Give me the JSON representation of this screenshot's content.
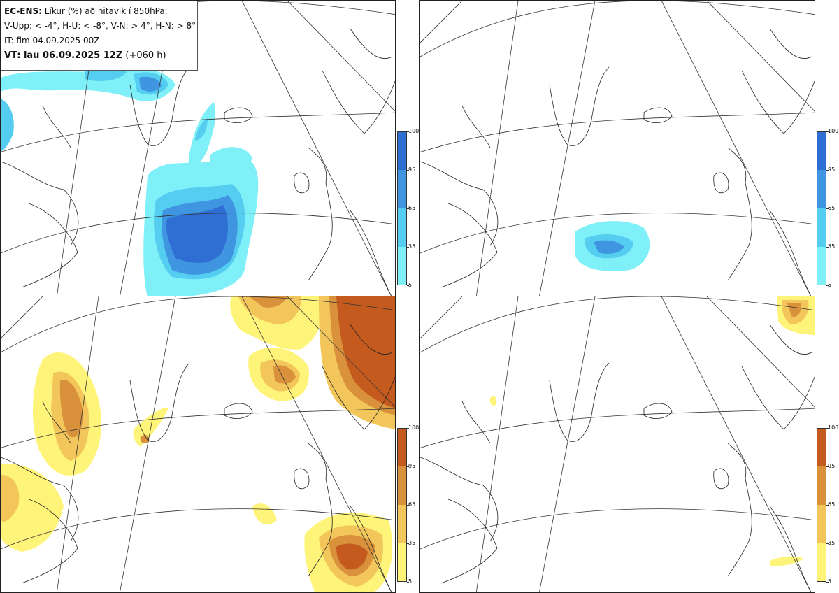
{
  "legend": {
    "product": "EC-ENS:",
    "title": "Líkur (%) að hitavik í 850hPa:",
    "thresholds": "V-Upp: < -4°, H-U: < -8°, V-N: > 4°, H-N: > 8°",
    "init_time": "IT: fim 04.09.2025 00Z",
    "valid_prefix": "VT: lau 06.09.2025 12Z",
    "valid_lead": "(+060 h)"
  },
  "colorbar_ticks": [
    "100",
    "95",
    "65",
    "35",
    "5"
  ],
  "colors": {
    "cold_scale": [
      "#7ff0f8",
      "#55cdf0",
      "#3f95e0",
      "#2f6fd4"
    ],
    "warm_scale": [
      "#fff47a",
      "#f2c65a",
      "#d9913c",
      "#c55a1f"
    ]
  },
  "panels": [
    {
      "id": "v-upp",
      "scale": "cold"
    },
    {
      "id": "h-u",
      "scale": "cold"
    },
    {
      "id": "v-n",
      "scale": "warm"
    },
    {
      "id": "h-n",
      "scale": "warm"
    }
  ]
}
